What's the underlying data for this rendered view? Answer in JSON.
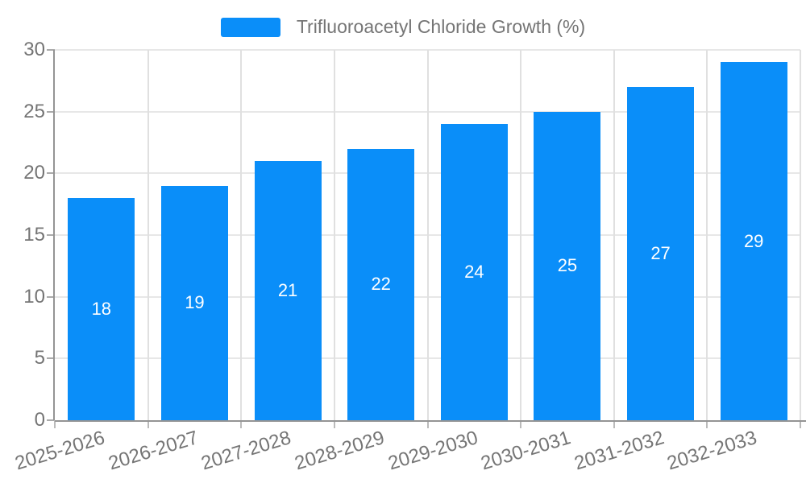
{
  "chart_data": {
    "type": "bar",
    "categories": [
      "2025-2026",
      "2026-2027",
      "2027-2028",
      "2028-2029",
      "2029-2030",
      "2030-2031",
      "2031-2032",
      "2032-2033"
    ],
    "series": [
      {
        "name": "Trifluoroacetyl Chloride Growth (%)",
        "values": [
          18,
          19,
          21,
          22,
          24,
          25,
          27,
          29
        ]
      }
    ],
    "title": "Trifluoroacetyl Chloride Growth (%)",
    "xlabel": "",
    "ylabel": "",
    "ylim": [
      0,
      30
    ],
    "ytick_step": 5,
    "ytick_labels": [
      "0",
      "5",
      "10",
      "15",
      "20",
      "25",
      "30"
    ],
    "grid": true,
    "legend_position": "top-center",
    "x_label_rotation_deg": -17,
    "colors": {
      "bar": "#0a8ef9",
      "bar_value_label": "#ffffff",
      "axis_text": "#757575",
      "axis_line": "#949494",
      "gridline": "#e3e3e3",
      "background": "#ffffff"
    }
  }
}
